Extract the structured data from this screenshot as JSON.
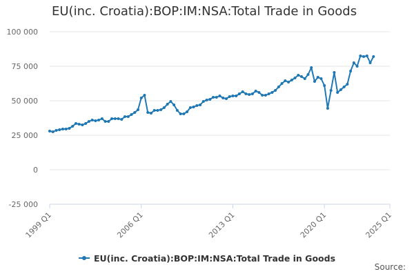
{
  "chart_data": {
    "type": "line",
    "title": "EU(inc. Croatia):BOP:IM:NSA:Total Trade in Goods",
    "xlabel": "",
    "ylabel": "",
    "ylim": [
      -25000,
      100000
    ],
    "y_ticks": [
      -25000,
      0,
      25000,
      50000,
      75000,
      100000
    ],
    "y_tick_labels": [
      "-25 000",
      "0",
      "25 000",
      "50 000",
      "75 000",
      "100 000"
    ],
    "x_range": [
      1999.0,
      2025.0
    ],
    "x_ticks": [
      1999.0,
      2006.0,
      2013.0,
      2020.0,
      2025.0
    ],
    "x_tick_labels": [
      "1999 Q1",
      "2006 Q1",
      "2013 Q1",
      "2020 Q1",
      "2025 Q1"
    ],
    "grid": true,
    "legend_position": "bottom",
    "series": [
      {
        "name": "EU(inc. Croatia):BOP:IM:NSA:Total Trade in Goods",
        "color": "#1f77b4",
        "x": [
          1999.0,
          1999.25,
          1999.5,
          1999.75,
          2000.0,
          2000.25,
          2000.5,
          2000.75,
          2001.0,
          2001.25,
          2001.5,
          2001.75,
          2002.0,
          2002.25,
          2002.5,
          2002.75,
          2003.0,
          2003.25,
          2003.5,
          2003.75,
          2004.0,
          2004.25,
          2004.5,
          2004.75,
          2005.0,
          2005.25,
          2005.5,
          2005.75,
          2006.0,
          2006.25,
          2006.5,
          2006.75,
          2007.0,
          2007.25,
          2007.5,
          2007.75,
          2008.0,
          2008.25,
          2008.5,
          2008.75,
          2009.0,
          2009.25,
          2009.5,
          2009.75,
          2010.0,
          2010.25,
          2010.5,
          2010.75,
          2011.0,
          2011.25,
          2011.5,
          2011.75,
          2012.0,
          2012.25,
          2012.5,
          2012.75,
          2013.0,
          2013.25,
          2013.5,
          2013.75,
          2014.0,
          2014.25,
          2014.5,
          2014.75,
          2015.0,
          2015.25,
          2015.5,
          2015.75,
          2016.0,
          2016.25,
          2016.5,
          2016.75,
          2017.0,
          2017.25,
          2017.5,
          2017.75,
          2018.0,
          2018.25,
          2018.5,
          2018.75,
          2019.0,
          2019.25,
          2019.5,
          2019.75,
          2020.0,
          2020.25,
          2020.5,
          2020.75,
          2021.0,
          2021.25,
          2021.5,
          2021.75,
          2022.0,
          2022.25,
          2022.5,
          2022.75,
          2023.0,
          2023.25,
          2023.5,
          2023.75
        ],
        "values": [
          28000,
          27500,
          28500,
          29000,
          29500,
          29500,
          30000,
          31500,
          33500,
          33000,
          32500,
          33500,
          35000,
          36000,
          35500,
          36000,
          37000,
          35000,
          35000,
          37000,
          37000,
          37000,
          36500,
          38500,
          38500,
          40000,
          41500,
          43500,
          52000,
          54000,
          41500,
          41000,
          43000,
          43000,
          43500,
          45000,
          47500,
          49500,
          47000,
          43000,
          40500,
          40500,
          42000,
          45000,
          45500,
          46500,
          47000,
          49500,
          50500,
          51000,
          52500,
          52500,
          53500,
          52000,
          51500,
          53000,
          53500,
          53500,
          55000,
          56500,
          55000,
          54500,
          55000,
          57000,
          56000,
          54000,
          54000,
          55000,
          56000,
          57500,
          60000,
          62500,
          64500,
          63500,
          65000,
          66500,
          68500,
          67500,
          66000,
          69000,
          74000,
          64000,
          67000,
          66000,
          61000,
          44500,
          57500,
          70500,
          56000,
          58000,
          60000,
          62000,
          71500,
          77500,
          75000,
          82500,
          82000,
          82500,
          77500,
          82000
        ]
      }
    ]
  },
  "source_label": "Source:"
}
